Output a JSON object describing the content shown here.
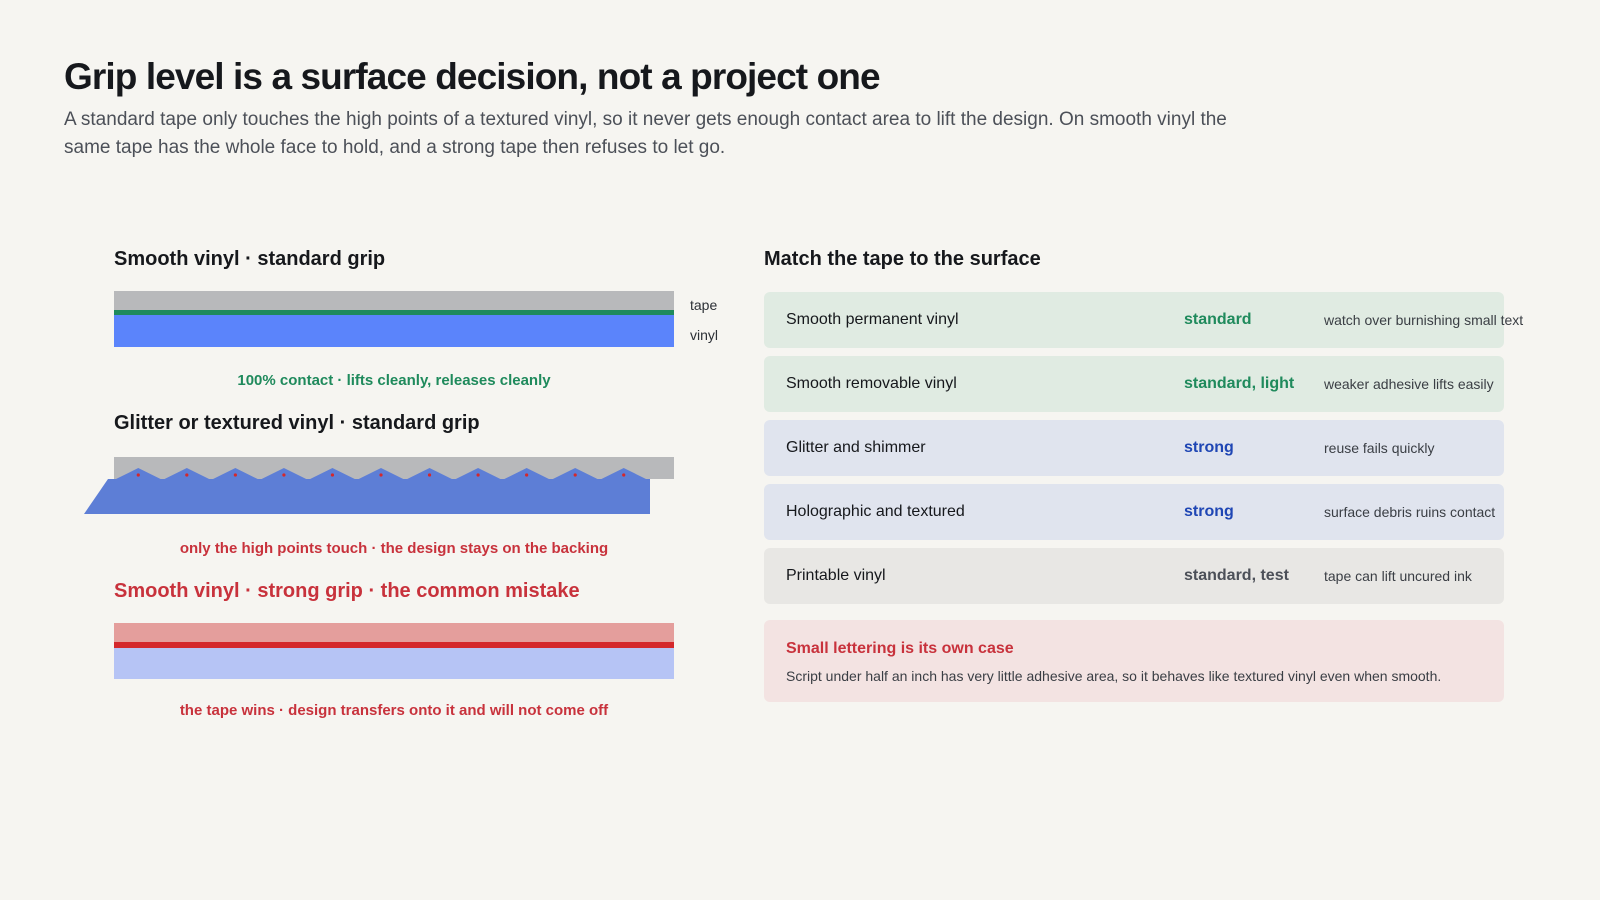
{
  "header": {
    "title": "Grip level is a surface decision, not a project one",
    "intro": "A standard tape only touches the high points of a textured vinyl, so it never gets enough contact area to lift the design. On smooth vinyl the same tape has the whole face to hold, and a strong tape then refuses to let go."
  },
  "diagrams": {
    "smooth_standard": {
      "title": "Smooth vinyl · standard grip",
      "tape_label": "tape",
      "vinyl_label": "vinyl",
      "caption": "100% contact · lifts cleanly, releases cleanly",
      "contact_fraction": 1.0
    },
    "textured_standard": {
      "title": "Glitter or textured vinyl · standard grip",
      "caption": "only the high points touch · the design stays on the backing",
      "contact_points": 11
    },
    "smooth_strong": {
      "title": "Smooth vinyl · strong grip · the common mistake",
      "caption": "the tape wins · design transfers onto it and will not come off"
    }
  },
  "table": {
    "title": "Match the tape to the surface",
    "rows": [
      {
        "surface": "Smooth permanent vinyl",
        "grip": "standard",
        "note": "watch over burnishing small text",
        "tone": "green"
      },
      {
        "surface": "Smooth removable vinyl",
        "grip": "standard, light",
        "note": "weaker adhesive lifts easily",
        "tone": "green"
      },
      {
        "surface": "Glitter and shimmer",
        "grip": "strong",
        "note": "reuse fails quickly",
        "tone": "blue"
      },
      {
        "surface": "Holographic and textured",
        "grip": "strong",
        "note": "surface debris ruins contact",
        "tone": "blue"
      },
      {
        "surface": "Printable vinyl",
        "grip": "standard, test",
        "note": "tape can lift uncured ink",
        "tone": "gray"
      }
    ],
    "callout": {
      "title": "Small lettering is its own case",
      "body": "Script under half an inch has very little adhesive area, so it behaves like textured vinyl even when smooth."
    }
  },
  "colors": {
    "tape": "#b8b9bb",
    "vinyl": "#5b84fb",
    "contact_good": "#1f8a5c",
    "mistake": "#c8323c"
  }
}
